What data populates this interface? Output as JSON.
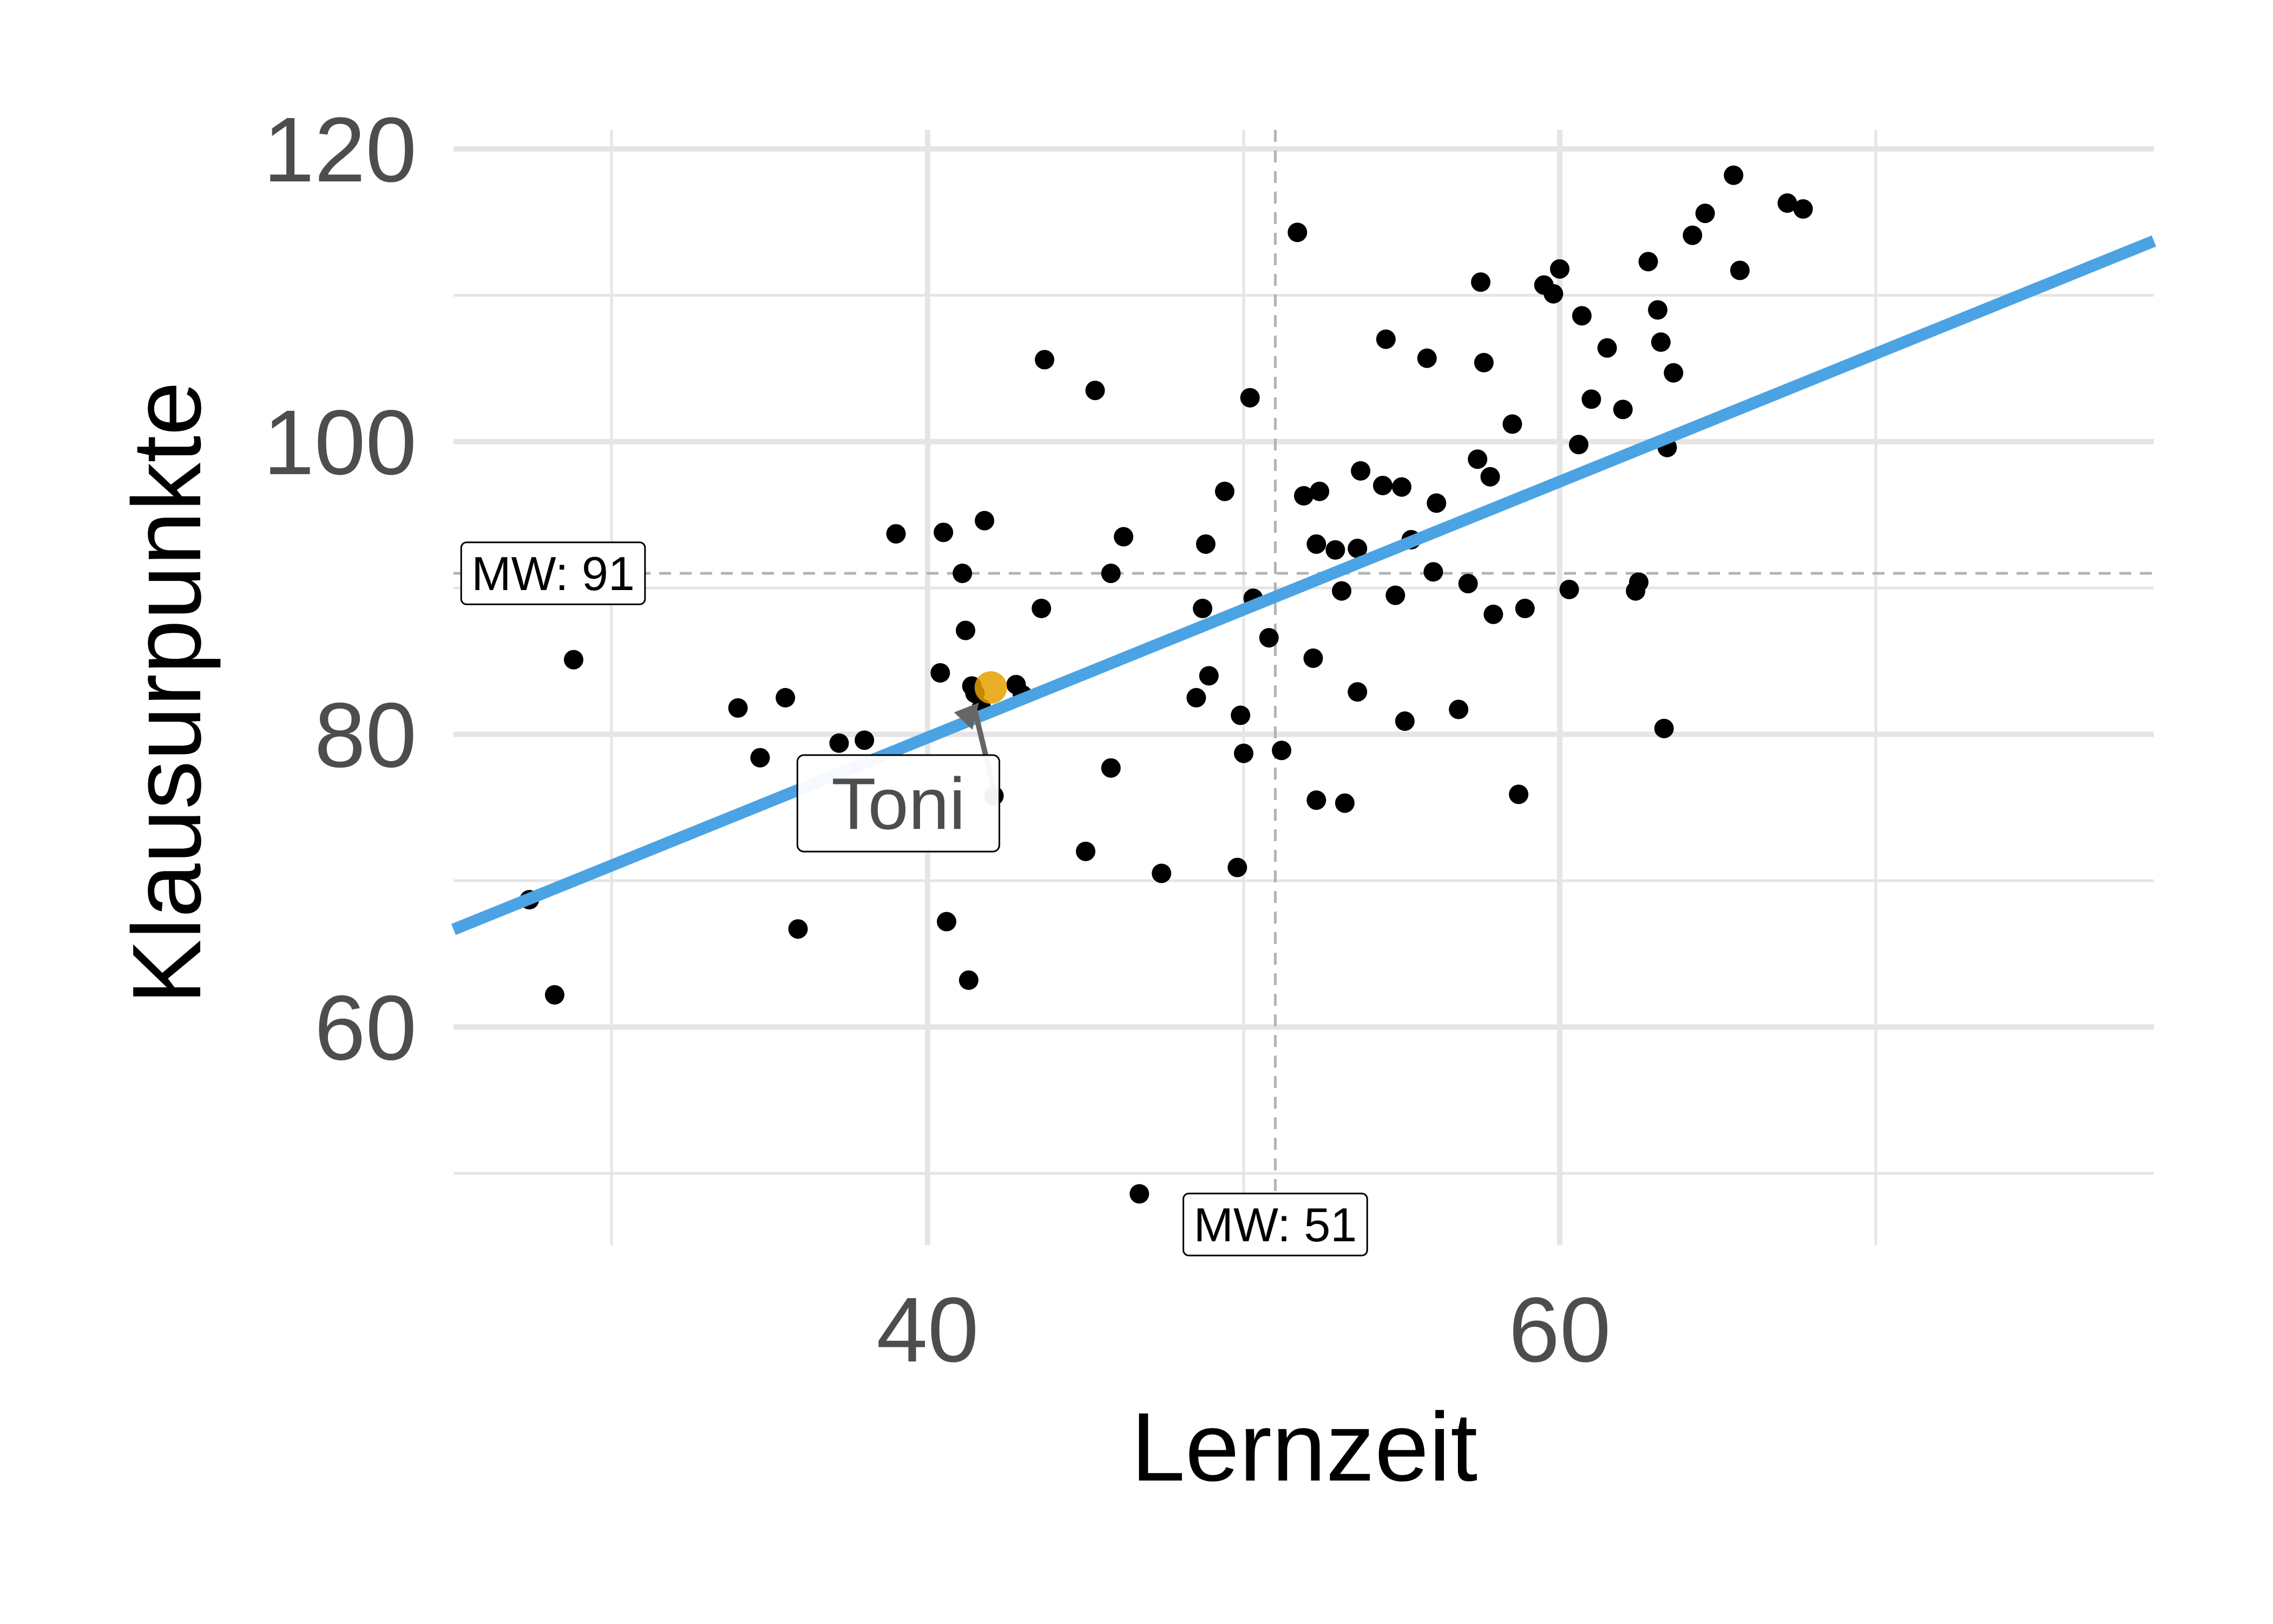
{
  "chart_data": {
    "type": "scatter",
    "xlabel": "Lernzeit",
    "ylabel": "Klausurpunkte",
    "xlim": [
      25,
      78.8
    ],
    "ylim": [
      45.1,
      121.3
    ],
    "x_ticks": [
      40,
      60
    ],
    "y_ticks": [
      60,
      80,
      100,
      120
    ],
    "grid": true,
    "colors": {
      "points": "#000000",
      "regression_line": "#4BA3E3",
      "highlight_point": "#E69F00",
      "grid": "#E5E5E5",
      "mean_line": "#B3B3B3"
    },
    "regression": {
      "intercept": 44.8,
      "slope": 0.8745
    },
    "mean_lines": {
      "x": 51,
      "y": 91
    },
    "mean_labels": {
      "x_label": "MW: 51",
      "y_label": "MW: 91"
    },
    "highlight": {
      "label": "Toni",
      "x": 42,
      "y": 83.2
    },
    "points": [
      [
        27.4,
        68.7
      ],
      [
        28.2,
        62.2
      ],
      [
        28.8,
        85.1
      ],
      [
        34.0,
        81.8
      ],
      [
        34.7,
        78.4
      ],
      [
        35.5,
        82.5
      ],
      [
        35.9,
        66.7
      ],
      [
        37.2,
        79.4
      ],
      [
        38.0,
        79.6
      ],
      [
        39.0,
        93.7
      ],
      [
        40.4,
        84.2
      ],
      [
        40.5,
        93.8
      ],
      [
        40.6,
        67.2
      ],
      [
        41.1,
        91.0
      ],
      [
        41.3,
        63.2
      ],
      [
        41.4,
        83.3
      ],
      [
        41.5,
        82.8
      ],
      [
        41.7,
        81.8
      ],
      [
        41.2,
        87.1
      ],
      [
        41.8,
        94.6
      ],
      [
        42.1,
        75.8
      ],
      [
        42.8,
        83.4
      ],
      [
        43.0,
        82.7
      ],
      [
        43.6,
        88.6
      ],
      [
        43.7,
        105.6
      ],
      [
        45.0,
        72.0
      ],
      [
        45.3,
        103.5
      ],
      [
        45.8,
        77.7
      ],
      [
        45.8,
        91.0
      ],
      [
        46.2,
        93.5
      ],
      [
        46.7,
        48.6
      ],
      [
        47.4,
        70.5
      ],
      [
        48.5,
        82.5
      ],
      [
        48.9,
        84.0
      ],
      [
        48.7,
        88.6
      ],
      [
        48.8,
        93.0
      ],
      [
        49.4,
        96.6
      ],
      [
        49.8,
        70.9
      ],
      [
        49.9,
        81.3
      ],
      [
        50.0,
        78.7
      ],
      [
        50.2,
        103.0
      ],
      [
        50.3,
        89.3
      ],
      [
        50.8,
        86.6
      ],
      [
        51.2,
        78.9
      ],
      [
        51.7,
        114.3
      ],
      [
        51.9,
        96.3
      ],
      [
        52.2,
        85.2
      ],
      [
        52.3,
        75.5
      ],
      [
        52.3,
        93.0
      ],
      [
        52.4,
        96.6
      ],
      [
        52.9,
        92.6
      ],
      [
        53.1,
        89.8
      ],
      [
        53.2,
        75.3
      ],
      [
        53.6,
        92.7
      ],
      [
        53.6,
        82.9
      ],
      [
        53.7,
        98.0
      ],
      [
        54.4,
        97.0
      ],
      [
        54.5,
        107.0
      ],
      [
        54.8,
        89.5
      ],
      [
        55.0,
        96.9
      ],
      [
        55.1,
        80.9
      ],
      [
        55.3,
        93.3
      ],
      [
        55.8,
        105.7
      ],
      [
        56.0,
        91.1
      ],
      [
        56.1,
        95.8
      ],
      [
        56.8,
        81.7
      ],
      [
        57.1,
        90.3
      ],
      [
        57.4,
        98.8
      ],
      [
        57.5,
        110.9
      ],
      [
        57.6,
        105.4
      ],
      [
        57.8,
        97.6
      ],
      [
        57.9,
        88.2
      ],
      [
        58.5,
        101.2
      ],
      [
        58.7,
        75.9
      ],
      [
        58.9,
        88.6
      ],
      [
        59.5,
        110.7
      ],
      [
        59.8,
        110.1
      ],
      [
        60.0,
        111.8
      ],
      [
        60.3,
        89.9
      ],
      [
        60.6,
        99.8
      ],
      [
        60.7,
        108.6
      ],
      [
        61.0,
        102.9
      ],
      [
        61.5,
        106.4
      ],
      [
        62.0,
        102.2
      ],
      [
        62.4,
        89.8
      ],
      [
        62.5,
        90.4
      ],
      [
        62.8,
        112.3
      ],
      [
        63.1,
        109.0
      ],
      [
        63.2,
        106.8
      ],
      [
        63.3,
        80.4
      ],
      [
        63.4,
        99.6
      ],
      [
        63.6,
        104.7
      ],
      [
        64.2,
        114.1
      ],
      [
        64.6,
        115.6
      ],
      [
        65.5,
        118.2
      ],
      [
        65.7,
        111.7
      ],
      [
        67.2,
        116.3
      ],
      [
        67.7,
        115.9
      ]
    ]
  }
}
